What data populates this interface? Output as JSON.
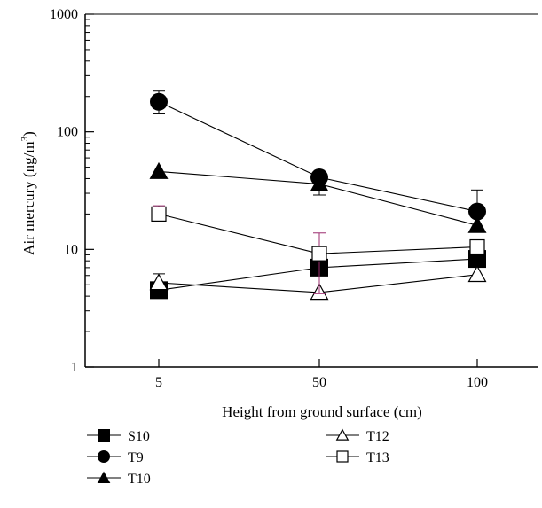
{
  "chart_data": {
    "type": "line",
    "xlabel": "Height from ground surface (cm)",
    "ylabel": "Air mercury (ng/m",
    "ylabel_sup": "3",
    "ylabel_end": ")",
    "yscale": "log",
    "ylim": [
      1,
      1000
    ],
    "yticks": [
      "1",
      "10",
      "100",
      "1000"
    ],
    "categories": [
      "5",
      "50",
      "100"
    ],
    "series": [
      {
        "name": "S10",
        "marker": "square-filled",
        "values": [
          4.5,
          7.0,
          8.3
        ]
      },
      {
        "name": "T9",
        "marker": "circle-filled",
        "values": [
          180,
          41,
          21
        ],
        "err_up": [
          222,
          null,
          32
        ],
        "err_down": [
          142,
          null,
          null
        ]
      },
      {
        "name": "T10",
        "marker": "triangle-filled",
        "values": [
          46,
          36,
          16
        ],
        "err_up": [
          null,
          null,
          null
        ],
        "err_down": [
          null,
          29,
          null
        ]
      },
      {
        "name": "T12",
        "marker": "triangle-open",
        "values": [
          5.2,
          4.3,
          6.1
        ],
        "err_up": [
          6.2,
          null,
          null
        ],
        "err_down": [
          null,
          null,
          null
        ]
      },
      {
        "name": "T13",
        "marker": "square-open",
        "values": [
          20,
          9.2,
          10.5
        ],
        "err_up": [
          23.5,
          13.8,
          null
        ],
        "err_down": [
          18,
          4.2,
          null
        ]
      }
    ],
    "colors": {
      "axis": "#000000",
      "line": "#000000",
      "errorbar_accent": "#9b2b6e"
    }
  }
}
